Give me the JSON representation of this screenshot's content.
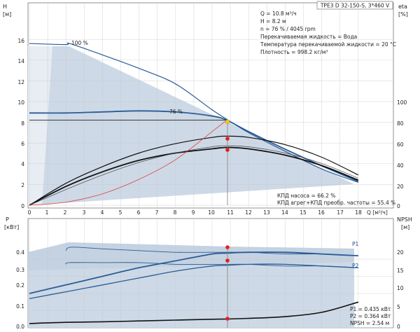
{
  "chart_data": {
    "type": "line",
    "title_box": "TPE3 D 32-150-S, 3*460 V",
    "info_lines": [
      "Q = 10.8 м³/ч",
      "H = 8.2 м",
      "n = 76 % / 4045 rpm",
      "Перекачиваемая жидкость = Вода",
      "Температура перекачиваемой жидкости = 20 °C",
      "Плотность = 998.2 кг/м³"
    ],
    "efficiency_info": [
      "КПД насоса = 66.2 %",
      "КПД агрег+КПД преобр. частоты = 55.4 %"
    ],
    "power_info": [
      "P1 = 0.435 кВт",
      "P2 = 0.364 кВт",
      "NPSH = 2.54 м"
    ],
    "x_axis": {
      "label": "Q [м³/ч]",
      "ticks": [
        "0",
        "1",
        "2",
        "3",
        "4",
        "5",
        "6",
        "7",
        "8",
        "9",
        "10",
        "11",
        "12",
        "13",
        "14",
        "15",
        "16",
        "17",
        "18"
      ],
      "range": [
        0,
        19
      ]
    },
    "top_left_axis": {
      "label_top": "H",
      "label_unit": "[м]",
      "range": [
        0,
        18
      ],
      "ticks": [
        "0",
        "2",
        "4",
        "6",
        "8",
        "10",
        "12",
        "14",
        "16"
      ]
    },
    "top_right_axis": {
      "label_top": "eta",
      "label_unit": "[%]",
      "range": [
        0,
        117
      ],
      "ticks": [
        "0",
        "20",
        "40",
        "60",
        "80",
        "100"
      ]
    },
    "bottom_left_axis": {
      "label_top": "P",
      "label_unit": "[кВт]",
      "range": [
        0,
        0.5
      ],
      "ticks": [
        "0.0",
        "0.1",
        "0.2",
        "0.3",
        "0.4"
      ]
    },
    "bottom_right_axis": {
      "label_top": "NPSH",
      "label_unit": "[м]",
      "range": [
        0,
        25
      ],
      "ticks": [
        "0",
        "5",
        "10",
        "15",
        "20"
      ]
    },
    "curve_labels": {
      "max_speed": "100 %",
      "duty_speed": "76 %",
      "p1": "P1",
      "p2": "P2"
    },
    "duty_point": {
      "q": 10.8,
      "h": 8.2,
      "eta_pump": 66.2,
      "eta_total": 55.4,
      "p1": 0.435,
      "p2": 0.364,
      "npsh": 2.54
    },
    "top_series": [
      {
        "x": [
          0,
          2,
          2.2,
          4,
          6,
          8,
          10,
          10.8,
          12,
          14,
          16,
          18
        ],
        "y": [
          15.6,
          15.5,
          15.6,
          14.5,
          13.2,
          11.7,
          9.2,
          8.3,
          7.0,
          5.2,
          3.5,
          2.2
        ]
      },
      {
        "x": [
          0,
          2,
          4,
          6,
          8,
          10,
          10.8,
          12,
          14,
          16,
          18
        ],
        "y": [
          8.9,
          8.9,
          9.0,
          9.1,
          9.0,
          8.6,
          8.2,
          7.1,
          5.4,
          3.8,
          2.3
        ]
      },
      {
        "x": [
          0,
          10.8
        ],
        "y": [
          8.2,
          8.2
        ]
      },
      {
        "x": [
          0,
          2,
          4,
          6,
          8,
          10,
          10.8,
          12,
          14,
          16,
          18
        ],
        "y": [
          0,
          21,
          37,
          50,
          59,
          65,
          66.2,
          65,
          58,
          46,
          29
        ]
      },
      {
        "x": [
          0,
          2,
          4,
          6,
          8,
          10,
          10.8,
          12,
          14,
          16,
          18
        ],
        "y": [
          0,
          18,
          32,
          43,
          50,
          54,
          55.4,
          54,
          48,
          38,
          24
        ]
      },
      {
        "x": [
          0,
          2,
          4,
          6,
          8,
          10,
          10.8,
          12,
          14,
          16,
          18
        ],
        "y": [
          0,
          15,
          29,
          41,
          50,
          56,
          57,
          56,
          50,
          40,
          26
        ]
      },
      {
        "x": [
          0,
          2,
          4,
          6,
          8,
          10,
          10.8
        ],
        "y": [
          0,
          0.3,
          1.1,
          2.5,
          4.4,
          7.1,
          8.2
        ]
      }
    ],
    "bottom_series": [
      {
        "x": [
          2,
          2.3,
          4,
          6,
          8,
          10,
          10.8,
          12,
          14,
          16,
          18
        ],
        "y": [
          0.45,
          0.47,
          0.46,
          0.45,
          0.44,
          0.44,
          0.44,
          0.44,
          0.43,
          0.43,
          0.42
        ]
      },
      {
        "x": [
          2,
          2.2,
          4,
          6,
          8,
          10,
          10.8,
          12,
          14,
          16,
          18
        ],
        "y": [
          0.37,
          0.38,
          0.38,
          0.38,
          0.37,
          0.37,
          0.37,
          0.37,
          0.36,
          0.36,
          0.35
        ]
      },
      {
        "x": [
          0,
          2,
          4,
          6,
          8,
          10,
          10.8,
          12,
          14,
          16,
          18
        ],
        "y": [
          0.2,
          0.25,
          0.3,
          0.35,
          0.39,
          0.43,
          0.435,
          0.44,
          0.44,
          0.43,
          0.42
        ]
      },
      {
        "x": [
          0,
          2,
          4,
          6,
          8,
          10,
          10.8,
          12,
          14,
          16,
          18
        ],
        "y": [
          0.17,
          0.21,
          0.25,
          0.29,
          0.33,
          0.36,
          0.364,
          0.37,
          0.37,
          0.36,
          0.35
        ]
      },
      {
        "x": [
          0,
          2,
          4,
          6,
          8,
          10,
          10.8,
          12,
          14,
          16,
          18
        ],
        "y": [
          0.025,
          0.032,
          0.035,
          0.04,
          0.045,
          0.05,
          0.051,
          0.055,
          0.065,
          0.09,
          0.15
        ]
      }
    ]
  }
}
